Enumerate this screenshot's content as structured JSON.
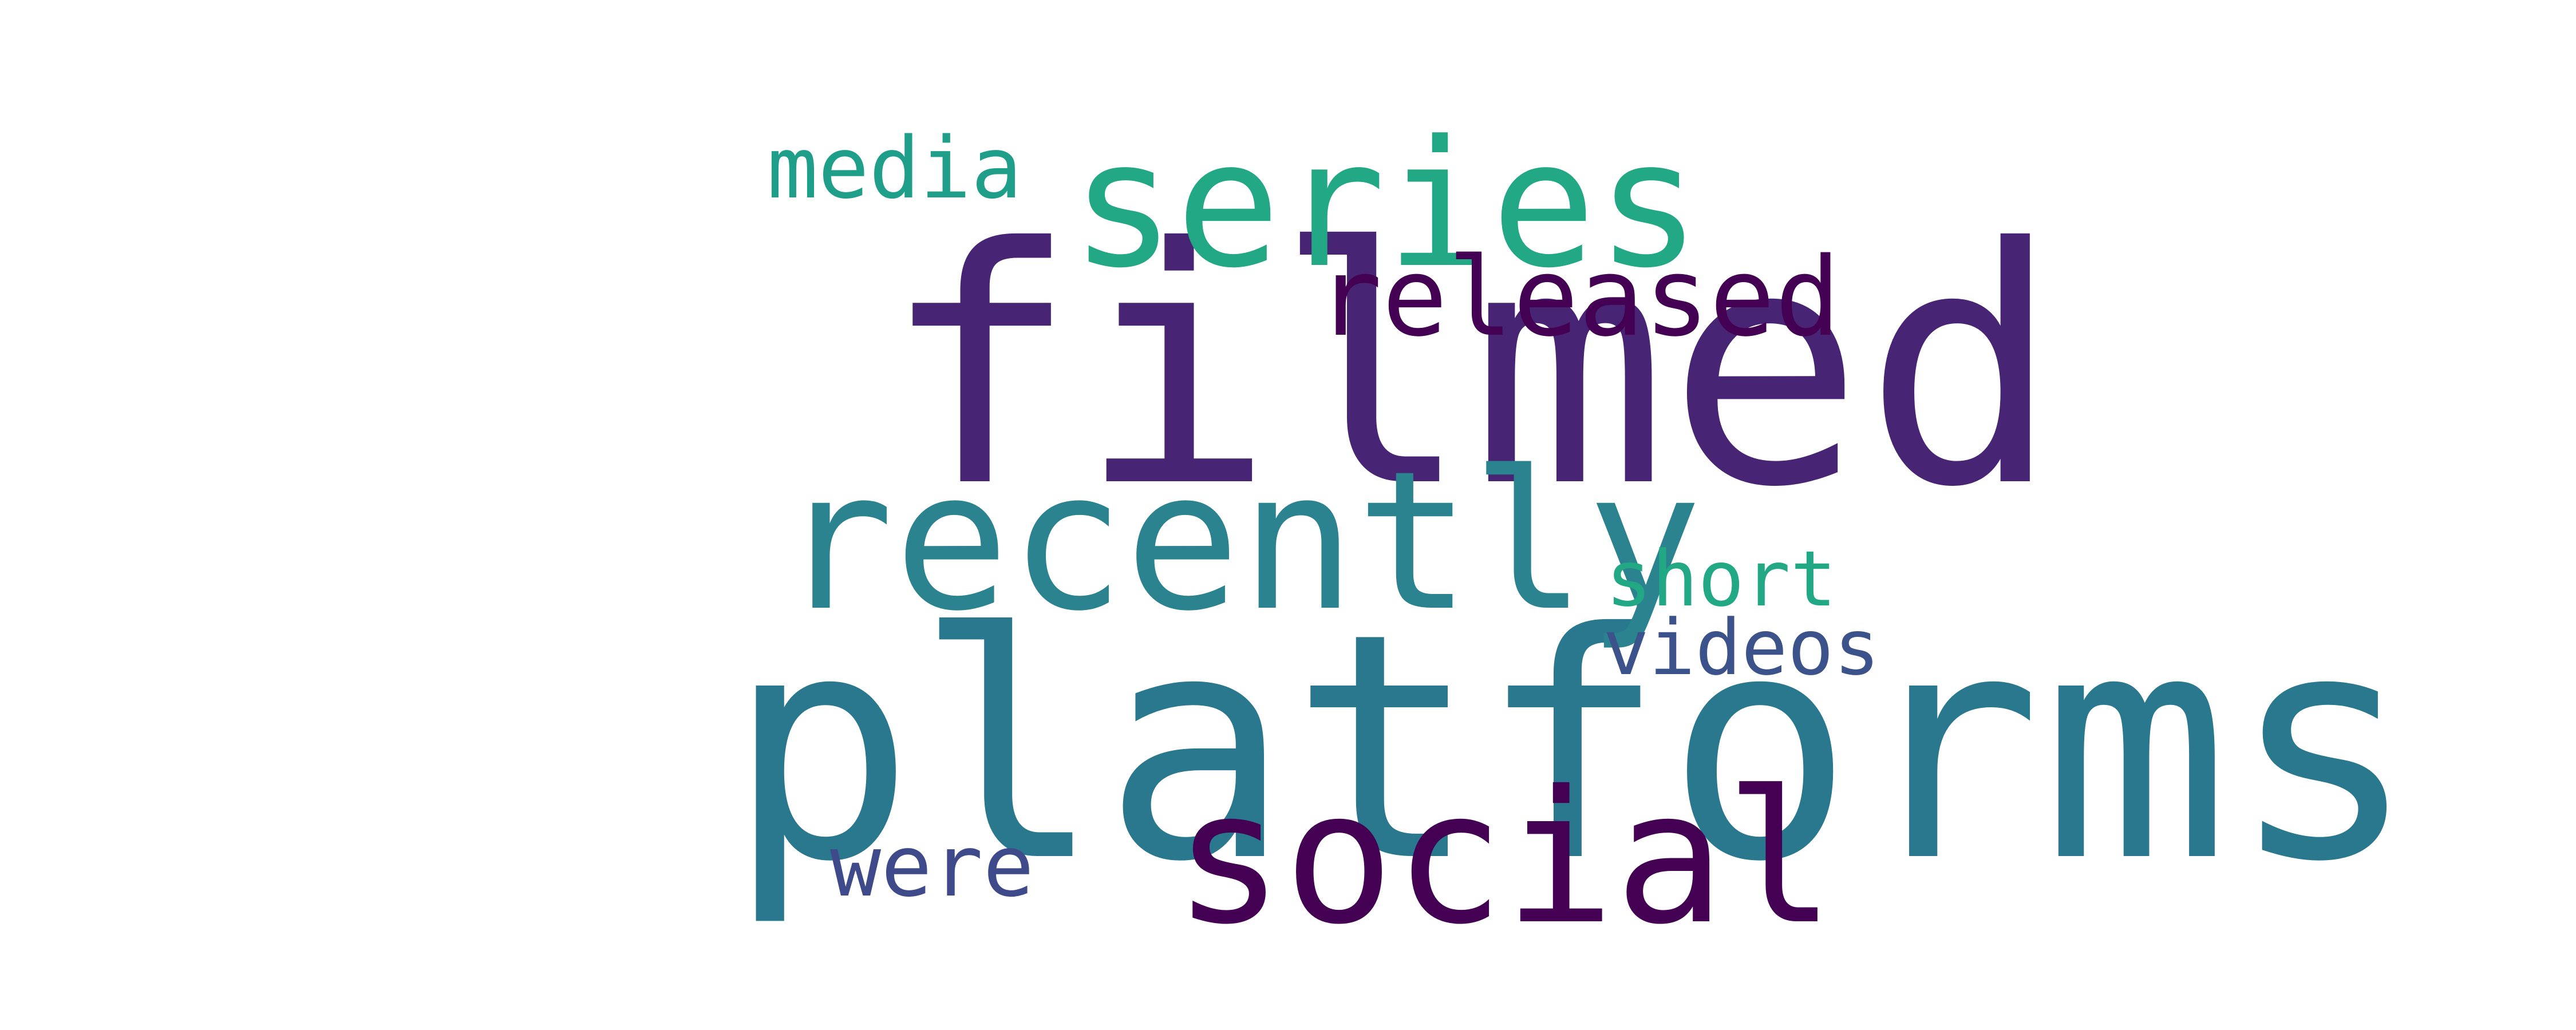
{
  "words": [
    {
      "id": "filmed",
      "text": "filmed",
      "color": "#482475"
    },
    {
      "id": "platforms",
      "text": "platforms",
      "color": "#2a788e"
    },
    {
      "id": "recently",
      "text": "recently",
      "color": "#2a838e"
    },
    {
      "id": "series",
      "text": "series",
      "color": "#22a884"
    },
    {
      "id": "social",
      "text": "social",
      "color": "#440154"
    },
    {
      "id": "released",
      "text": "released",
      "color": "#440154"
    },
    {
      "id": "media",
      "text": "media",
      "color": "#1f9e89"
    },
    {
      "id": "short",
      "text": "short",
      "color": "#22a884"
    },
    {
      "id": "videos",
      "text": "videos",
      "color": "#3b528b"
    },
    {
      "id": "were",
      "text": "were",
      "color": "#3e4a89"
    }
  ]
}
